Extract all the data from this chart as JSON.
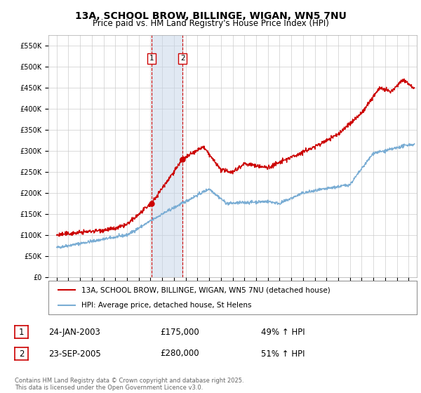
{
  "title": "13A, SCHOOL BROW, BILLINGE, WIGAN, WN5 7NU",
  "subtitle": "Price paid vs. HM Land Registry's House Price Index (HPI)",
  "title_fontsize": 10,
  "subtitle_fontsize": 8.5,
  "ylim": [
    0,
    575000
  ],
  "yticks": [
    0,
    50000,
    100000,
    150000,
    200000,
    250000,
    300000,
    350000,
    400000,
    450000,
    500000,
    550000
  ],
  "ytick_labels": [
    "£0",
    "£50K",
    "£100K",
    "£150K",
    "£200K",
    "£250K",
    "£300K",
    "£350K",
    "£400K",
    "£450K",
    "£500K",
    "£550K"
  ],
  "background_color": "#ffffff",
  "plot_bg_color": "#ffffff",
  "grid_color": "#cccccc",
  "sale1_date_num": 2003.07,
  "sale2_date_num": 2005.73,
  "sale1_price": 175000,
  "sale2_price": 280000,
  "sale1_label": "1",
  "sale2_label": "2",
  "sale1_date_str": "24-JAN-2003",
  "sale2_date_str": "23-SEP-2005",
  "sale1_hpi": "49% ↑ HPI",
  "sale2_hpi": "51% ↑ HPI",
  "red_line_color": "#cc0000",
  "blue_line_color": "#7aadd4",
  "shade_color": "#c5d5e8",
  "legend_label_red": "13A, SCHOOL BROW, BILLINGE, WIGAN, WN5 7NU (detached house)",
  "legend_label_blue": "HPI: Average price, detached house, St Helens",
  "footer": "Contains HM Land Registry data © Crown copyright and database right 2025.\nThis data is licensed under the Open Government Licence v3.0.",
  "xstart": 1995,
  "xend": 2025
}
